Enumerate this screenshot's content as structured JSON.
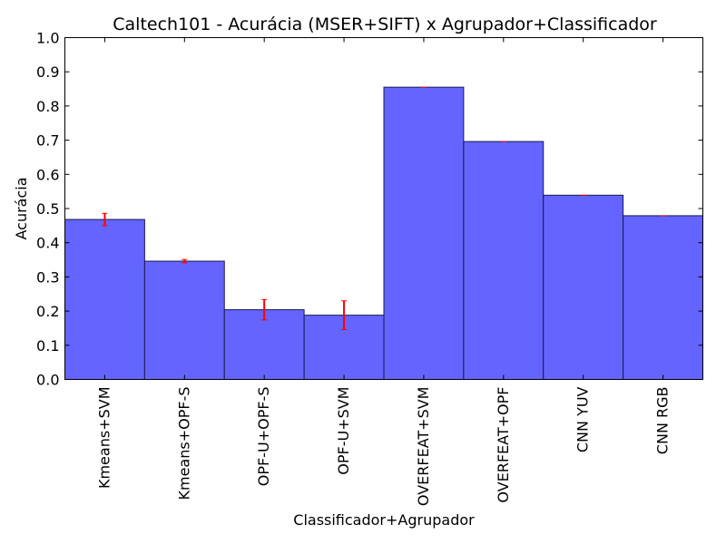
{
  "chart_data": {
    "type": "bar",
    "title": "Caltech101 - Acurácia (MSER+SIFT) x Agrupador+Classificador",
    "xlabel": "Classificador+Agrupador",
    "ylabel": "Acurácia",
    "ylim": [
      0,
      1.0
    ],
    "yticks": [
      "0.0",
      "0.1",
      "0.2",
      "0.3",
      "0.4",
      "0.5",
      "0.6",
      "0.7",
      "0.8",
      "0.9",
      "1.0"
    ],
    "categories": [
      "Kmeans+SVM",
      "Kmeans+OPF-S",
      "OPF-U+OPF-S",
      "OPF-U+SVM",
      "OVERFEAT+SVM",
      "OVERFEAT+OPF",
      "CNN YUV",
      "CNN RGB"
    ],
    "values": [
      0.468,
      0.346,
      0.204,
      0.188,
      0.855,
      0.696,
      0.539,
      0.479
    ],
    "errors": [
      0.018,
      0.005,
      0.03,
      0.042,
      0.0,
      0.0,
      0.0,
      0.0
    ],
    "grid": false,
    "colors": {
      "bar": "#6464ff",
      "bar_edge": "#1a1a4d",
      "error": "#ff0000"
    }
  }
}
